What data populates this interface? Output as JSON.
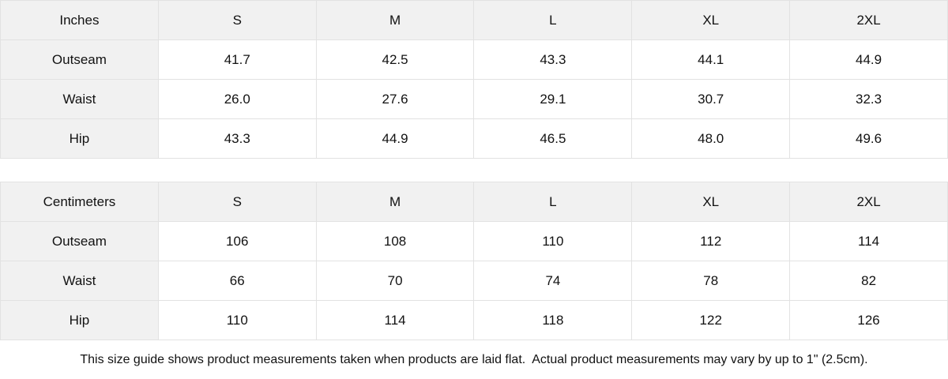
{
  "colors": {
    "header_bg": "#f1f1f1",
    "border": "#e2e2e2",
    "text": "#121212",
    "page_bg": "#ffffff"
  },
  "tables": [
    {
      "unit_label": "Inches",
      "size_headers": [
        "S",
        "M",
        "L",
        "XL",
        "2XL"
      ],
      "rows": [
        {
          "label": "Outseam",
          "values": [
            "41.7",
            "42.5",
            "43.3",
            "44.1",
            "44.9"
          ]
        },
        {
          "label": "Waist",
          "values": [
            "26.0",
            "27.6",
            "29.1",
            "30.7",
            "32.3"
          ]
        },
        {
          "label": "Hip",
          "values": [
            "43.3",
            "44.9",
            "46.5",
            "48.0",
            "49.6"
          ]
        }
      ]
    },
    {
      "unit_label": "Centimeters",
      "size_headers": [
        "S",
        "M",
        "L",
        "XL",
        "2XL"
      ],
      "rows": [
        {
          "label": "Outseam",
          "values": [
            "106",
            "108",
            "110",
            "112",
            "114"
          ]
        },
        {
          "label": "Waist",
          "values": [
            "66",
            "70",
            "74",
            "78",
            "82"
          ]
        },
        {
          "label": "Hip",
          "values": [
            "110",
            "114",
            "118",
            "122",
            "126"
          ]
        }
      ]
    }
  ],
  "footer": {
    "note": "This size guide shows product measurements taken when products are laid flat.  Actual product measurements may vary by up to 1\" (2.5cm)."
  }
}
